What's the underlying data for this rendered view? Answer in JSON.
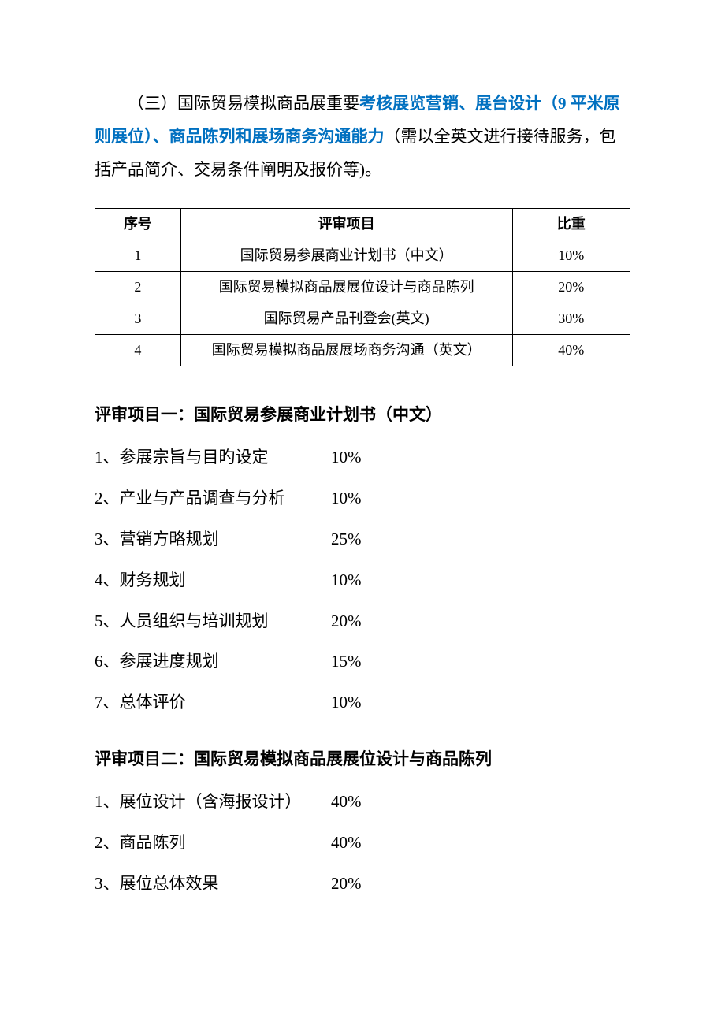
{
  "intro": {
    "prefix": "（三）国际贸易模拟商品展重要",
    "highlight": "考核展览营销、展台设计（9 平米原则展位）、商品陈列和展场商务沟通能力",
    "suffix": "（需以全英文进行接待服务，包括产品简介、交易条件阐明及报价等)。"
  },
  "table": {
    "columns": [
      "序号",
      "评审项目",
      "比重"
    ],
    "column_widths": [
      "16%",
      "62%",
      "22%"
    ],
    "rows": [
      [
        "1",
        "国际贸易参展商业计划书（中文）",
        "10%"
      ],
      [
        "2",
        "国际贸易模拟商品展展位设计与商品陈列",
        "20%"
      ],
      [
        "3",
        "国际贸易产品刊登会(英文)",
        "30%"
      ],
      [
        "4",
        "国际贸易模拟商品展展场商务沟通（英文）",
        "40%"
      ]
    ]
  },
  "sections": [
    {
      "title": "评审项目一：国际贸易参展商业计划书（中文）",
      "items": [
        {
          "label": "1、参展宗旨与目旳设定",
          "weight": "10%"
        },
        {
          "label": "2、产业与产品调查与分析",
          "weight": "10%"
        },
        {
          "label": "3、营销方略规划",
          "weight": "25%"
        },
        {
          "label": "4、财务规划",
          "weight": "10%"
        },
        {
          "label": "5、人员组织与培训规划",
          "weight": "20%"
        },
        {
          "label": "6、参展进度规划",
          "weight": "15%"
        },
        {
          "label": "7、总体评价",
          "weight": "10%"
        }
      ]
    },
    {
      "title": "评审项目二：国际贸易模拟商品展展位设计与商品陈列",
      "items": [
        {
          "label": "1、展位设计（含海报设计）",
          "weight": "40%"
        },
        {
          "label": "2、商品陈列",
          "weight": "40%"
        },
        {
          "label": "3、展位总体效果",
          "weight": "20%"
        }
      ]
    }
  ]
}
